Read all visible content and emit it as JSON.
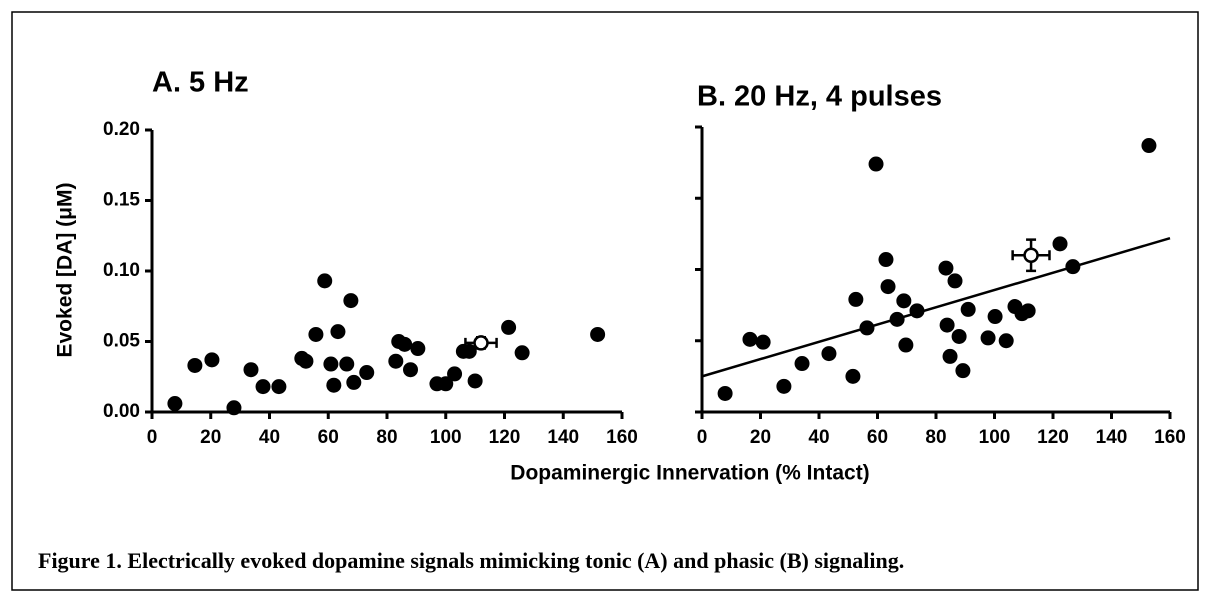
{
  "axis_labels": {
    "x": "Dopaminergic Innervation (% Intact)",
    "y": "Evoked [DA] (μM)"
  },
  "caption": "Figure 1. Electrically evoked dopamine signals mimicking tonic (A) and phasic (B) signaling.",
  "chart_data": [
    {
      "type": "scatter",
      "title": "A. 5 Hz",
      "color": "#000000",
      "x": [
        7.8,
        14.6,
        20.4,
        27.9,
        33.7,
        37.8,
        43.2,
        51,
        52.4,
        55.8,
        58.8,
        60.9,
        61.9,
        63.3,
        66.3,
        67.7,
        68.7,
        73.1,
        83,
        84,
        86,
        88,
        90.5,
        97,
        100,
        103,
        106,
        108,
        110,
        121.4,
        126,
        151.7
      ],
      "values": [
        0.006,
        0.033,
        0.037,
        0.003,
        0.03,
        0.018,
        0.018,
        0.038,
        0.036,
        0.055,
        0.093,
        0.034,
        0.019,
        0.057,
        0.034,
        0.079,
        0.021,
        0.028,
        0.036,
        0.05,
        0.048,
        0.03,
        0.045,
        0.02,
        0.02,
        0.027,
        0.043,
        0.043,
        0.022,
        0.06,
        0.042,
        0.055
      ],
      "mean": {
        "x": 112,
        "y": 0.049,
        "xerr": 5.3,
        "yerr": 0.004
      },
      "xlim": [
        0,
        160
      ],
      "xticks": [
        0,
        20,
        40,
        60,
        80,
        100,
        120,
        140,
        160
      ],
      "ylim": [
        0,
        0.2
      ],
      "yticks": [
        {
          "value": 0,
          "label": "0.00"
        },
        {
          "value": 0.05,
          "label": "0.05"
        },
        {
          "value": 0.1,
          "label": "0.10"
        },
        {
          "value": 0.15,
          "label": "0.15"
        },
        {
          "value": 0.2,
          "label": "0.20"
        }
      ]
    },
    {
      "type": "scatter",
      "title": "B. 20 Hz, 4 pulses",
      "color": "#000000",
      "x": [
        7.9,
        16.4,
        20.9,
        28,
        34.2,
        43.4,
        51.6,
        52.6,
        56.4,
        59.5,
        62.9,
        63.6,
        66.7,
        69,
        69.7,
        73.5,
        83.4,
        83.8,
        84.8,
        86.5,
        87.9,
        89.2,
        91,
        97.8,
        100.2,
        104,
        107,
        109.4,
        111.5,
        122.4,
        126.8,
        152.8
      ],
      "values": [
        0.013,
        0.051,
        0.049,
        0.018,
        0.034,
        0.041,
        0.025,
        0.079,
        0.059,
        0.174,
        0.107,
        0.088,
        0.065,
        0.078,
        0.047,
        0.071,
        0.101,
        0.061,
        0.039,
        0.092,
        0.053,
        0.029,
        0.072,
        0.052,
        0.067,
        0.05,
        0.074,
        0.069,
        0.071,
        0.118,
        0.102,
        0.187
      ],
      "mean": {
        "x": 112.5,
        "y": 0.11,
        "xerr": 6.3,
        "yerr": 0.011
      },
      "fit": {
        "x": [
          0,
          160
        ],
        "y": [
          0.025,
          0.122
        ]
      },
      "xlim": [
        0,
        160
      ],
      "xticks": [
        0,
        20,
        40,
        60,
        80,
        100,
        120,
        140,
        160
      ],
      "ylim": [
        0,
        0.2
      ],
      "yticks": [
        0,
        0.05,
        0.1,
        0.15,
        0.2
      ]
    }
  ]
}
